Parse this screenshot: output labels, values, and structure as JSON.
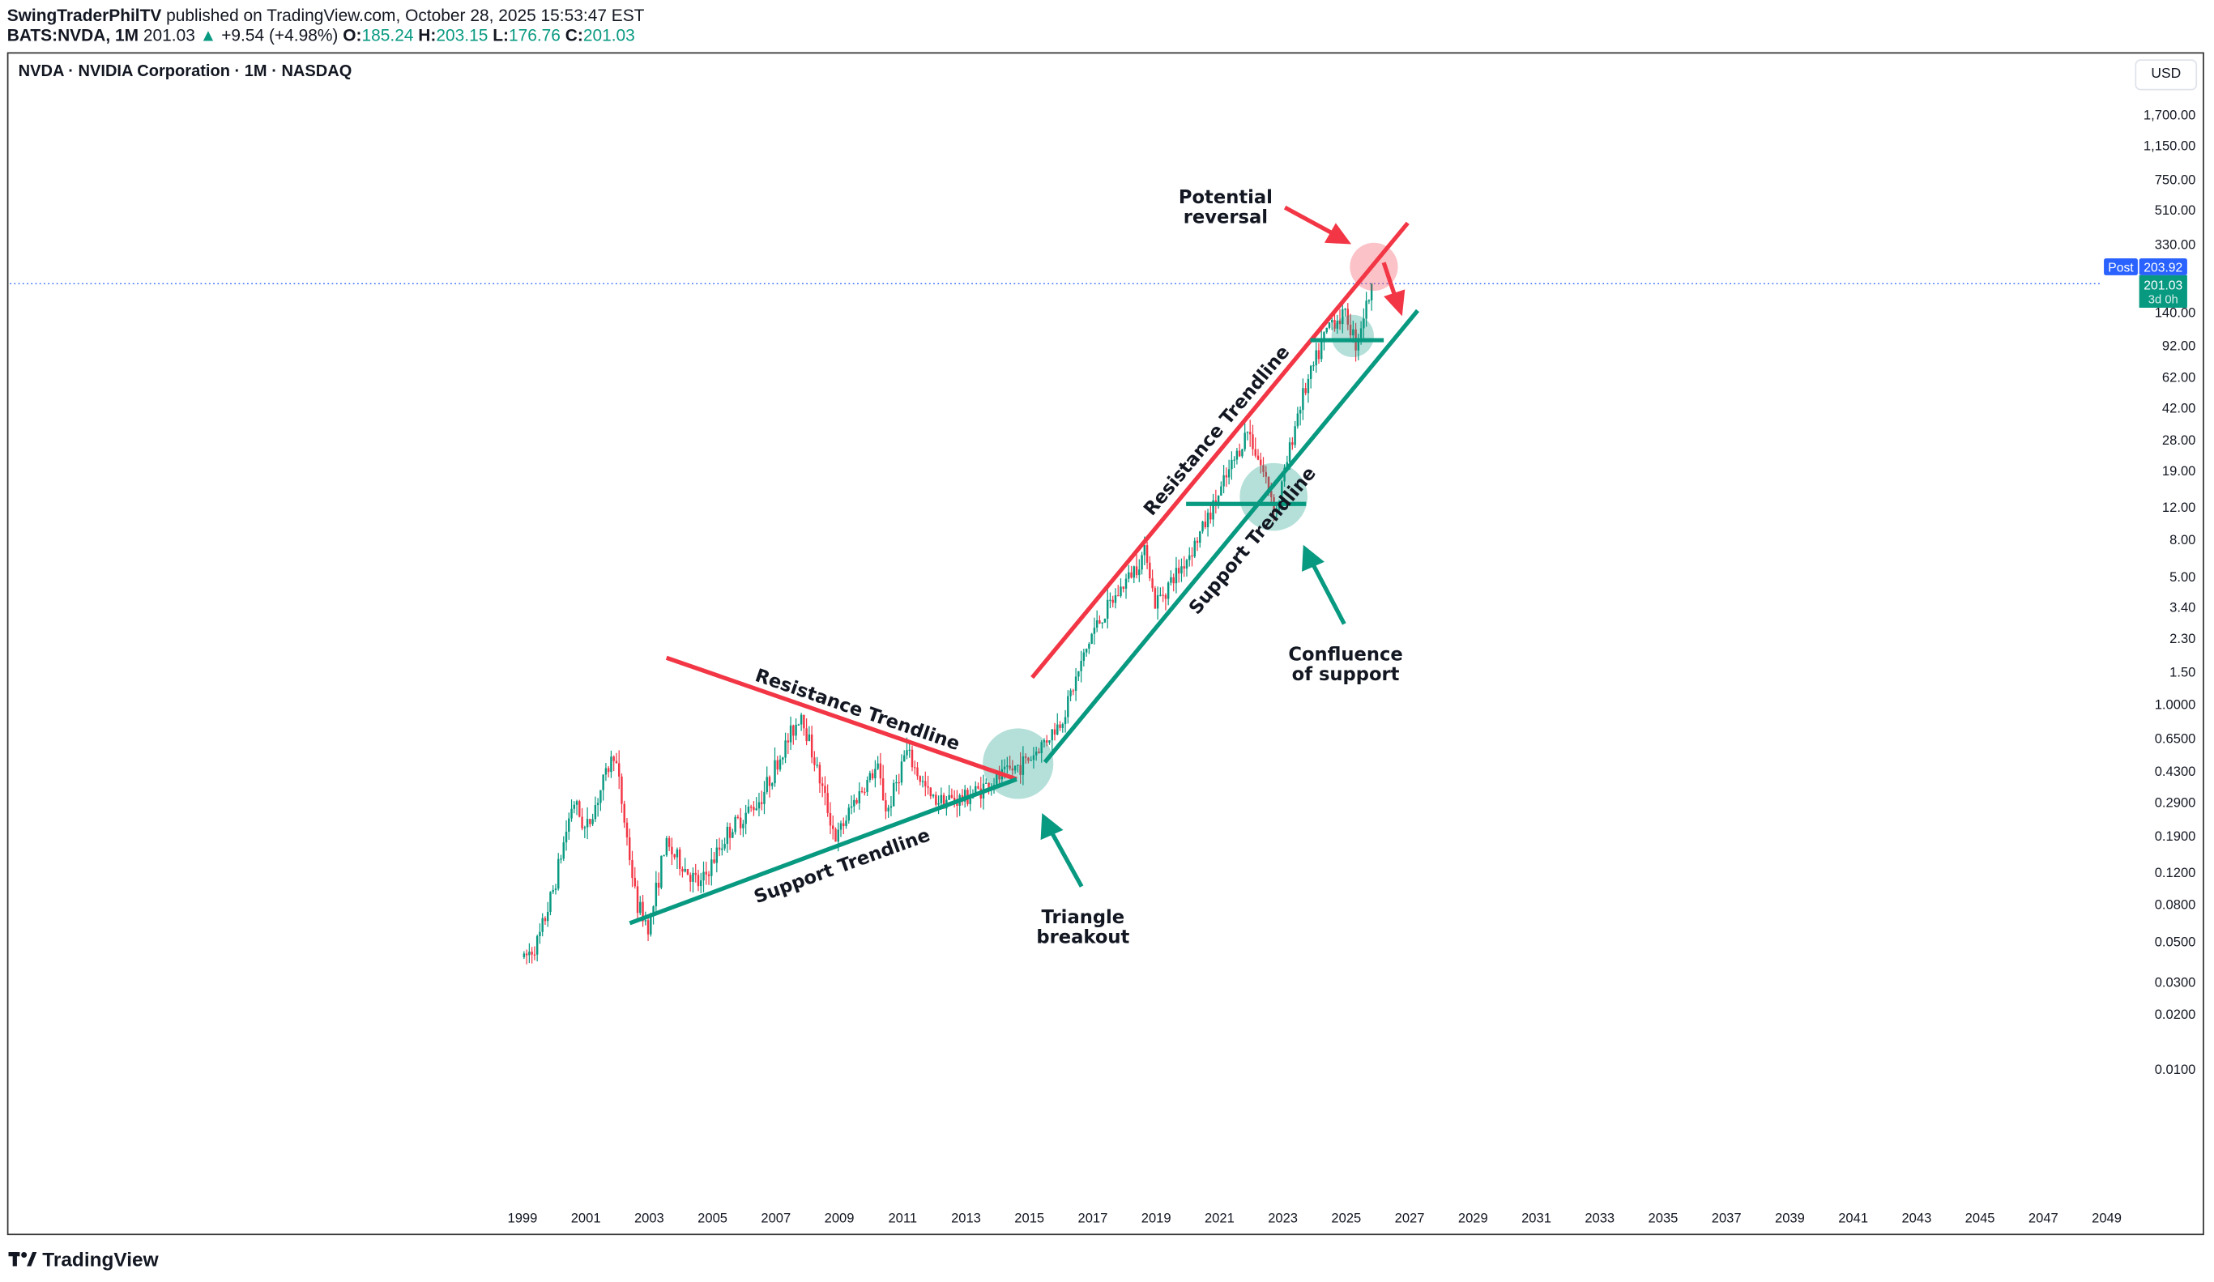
{
  "header": {
    "author": "SwingTraderPhilTV",
    "published": "published on TradingView.com, October 28, 2025 15:53:47 EST",
    "symbol": "BATS:NVDA, 1M",
    "last": "201.03",
    "change": "+9.54 (+4.98%)",
    "o_label": "O:",
    "o": "185.24",
    "h_label": "H:",
    "h": "203.15",
    "l_label": "L:",
    "l": "176.76",
    "c_label": "C:",
    "c": "201.03"
  },
  "chart_title": "NVDA · NVIDIA Corporation · 1M · NASDAQ",
  "currency": "USD",
  "price_tags": {
    "post_label": "Post",
    "post": "203.92",
    "last": "201.03",
    "countdown": "3d 0h"
  },
  "brand": "TradingView",
  "colors": {
    "up": "#089981",
    "down": "#f23645",
    "resistance": "#f23645",
    "support": "#089981",
    "post_tag": "#2962ff"
  },
  "chart_data": {
    "type": "candlestick",
    "interval": "1M",
    "y_scale": "log",
    "ylim": [
      0.01,
      1700
    ],
    "xlim": [
      1999,
      2049
    ],
    "y_ticks": [
      "1,700.00",
      "1,150.00",
      "750.00",
      "510.00",
      "330.00",
      "140.00",
      "92.00",
      "62.00",
      "42.00",
      "28.00",
      "19.00",
      "12.00",
      "8.00",
      "5.00",
      "3.40",
      "2.30",
      "1.50",
      "1.0000",
      "0.6500",
      "0.4300",
      "0.2900",
      "0.1900",
      "0.1200",
      "0.0800",
      "0.0500",
      "0.0300",
      "0.0200",
      "0.0100"
    ],
    "x_ticks": [
      "1999",
      "2001",
      "2003",
      "2005",
      "2007",
      "2009",
      "2011",
      "2013",
      "2015",
      "2017",
      "2019",
      "2021",
      "2023",
      "2025",
      "2027",
      "2029",
      "2031",
      "2033",
      "2035",
      "2037",
      "2039",
      "2041",
      "2043",
      "2045",
      "2047",
      "2049"
    ],
    "approx_close_path": [
      [
        1999.05,
        0.04
      ],
      [
        1999.5,
        0.05
      ],
      [
        2000.0,
        0.1
      ],
      [
        2000.6,
        0.3
      ],
      [
        2001.0,
        0.2
      ],
      [
        2001.9,
        0.55
      ],
      [
        2002.6,
        0.08
      ],
      [
        2003.0,
        0.06
      ],
      [
        2003.5,
        0.17
      ],
      [
        2004.6,
        0.1
      ],
      [
        2005.5,
        0.2
      ],
      [
        2006.5,
        0.3
      ],
      [
        2007.8,
        0.9
      ],
      [
        2008.9,
        0.18
      ],
      [
        2009.5,
        0.3
      ],
      [
        2010.2,
        0.45
      ],
      [
        2010.5,
        0.25
      ],
      [
        2011.1,
        0.55
      ],
      [
        2011.9,
        0.3
      ],
      [
        2012.9,
        0.3
      ],
      [
        2013.9,
        0.38
      ],
      [
        2015.0,
        0.5
      ],
      [
        2016.0,
        0.8
      ],
      [
        2017.0,
        2.5
      ],
      [
        2018.7,
        7
      ],
      [
        2018.95,
        3.5
      ],
      [
        2019.9,
        6
      ],
      [
        2020.3,
        8
      ],
      [
        2020.9,
        13
      ],
      [
        2021.9,
        32
      ],
      [
        2022.8,
        11.5
      ],
      [
        2023.5,
        42
      ],
      [
        2024.5,
        125
      ],
      [
        2025.0,
        135
      ],
      [
        2025.3,
        95
      ],
      [
        2025.83,
        201.03
      ]
    ],
    "annotations": {
      "resistance_1": "Resistance Trendline",
      "support_1": "Support Trendline",
      "resistance_2": "Resistance Trendline",
      "support_2": "Support Trendline",
      "reversal_line1": "Potential",
      "reversal_line2": "reversal",
      "confluence_line1": "Confluence",
      "confluence_line2": "of support",
      "breakout_line1": "Triangle",
      "breakout_line2": "breakout"
    }
  }
}
